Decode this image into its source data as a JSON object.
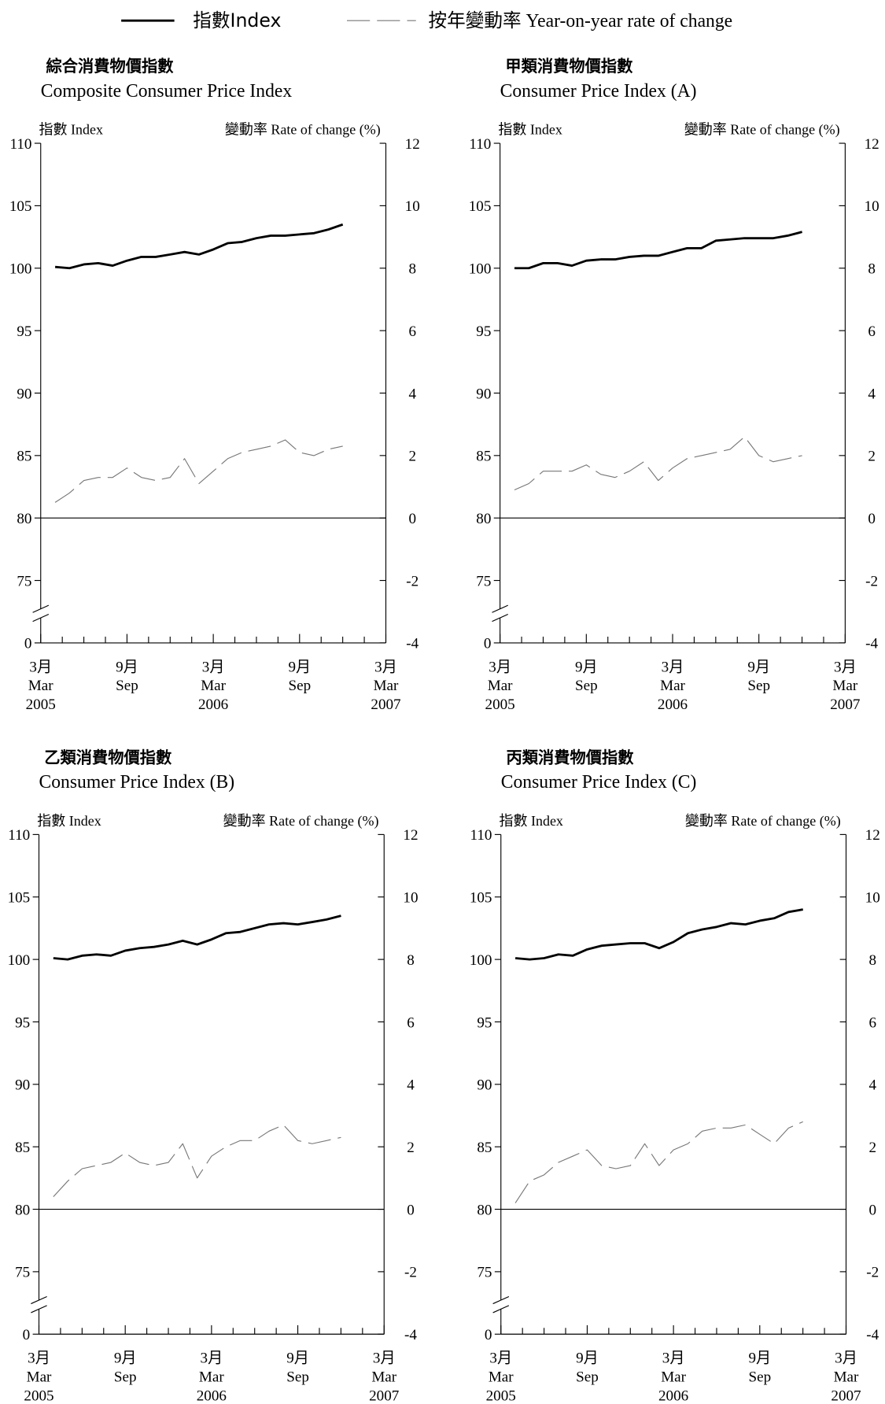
{
  "chart_data": [
    {
      "type": "line",
      "title": "綜合消費物價指數",
      "subtitle": "Composite Consumer Price Index",
      "ylabel": "指數 Index",
      "y2label": "變動率 Rate of change (%)",
      "x": [
        1,
        2,
        3,
        4,
        5,
        6,
        7,
        8,
        9,
        10,
        11,
        12,
        13,
        14,
        15,
        16,
        17,
        18,
        19,
        20,
        21
      ],
      "xlim": [
        0,
        24
      ],
      "xticks": [
        {
          "value": 0,
          "label": [
            "3月",
            "Mar",
            "2005"
          ]
        },
        {
          "value": 6,
          "label": [
            "9月",
            "Sep"
          ]
        },
        {
          "value": 12,
          "label": [
            "3月",
            "Mar",
            "2006"
          ]
        },
        {
          "value": 18,
          "label": [
            "9月",
            "Sep"
          ]
        },
        {
          "value": 24,
          "label": [
            "3月",
            "Mar",
            "2007"
          ]
        }
      ],
      "x_minor_ticks": [
        1.5,
        3,
        4.5,
        7.5,
        9,
        10.5,
        13.5,
        15,
        16.5,
        19.5,
        21,
        22.5
      ],
      "ylim": [
        0,
        110
      ],
      "y_break": [
        0,
        70
      ],
      "yticks": [
        0,
        75,
        80,
        85,
        90,
        95,
        100,
        105,
        110
      ],
      "y2lim": [
        -4,
        12
      ],
      "y2ticks": [
        -4,
        -2,
        0,
        2,
        4,
        6,
        8,
        10,
        12
      ],
      "y2_zero_line": true,
      "series": [
        {
          "name": "指數Index",
          "color": "#000000",
          "width": 2.5,
          "values": [
            100.1,
            100.0,
            100.3,
            100.4,
            100.2,
            100.6,
            100.9,
            100.9,
            101.1,
            101.3,
            101.1,
            101.5,
            102.0,
            102.1,
            102.4,
            102.6,
            102.6,
            102.7,
            102.8,
            103.1,
            103.5
          ]
        },
        {
          "name": "按年變動率 Year-on-year rate of change",
          "color": "#777777",
          "width": 1,
          "dash": "26 8",
          "axis": "y2",
          "values": [
            0.5,
            0.8,
            1.2,
            1.3,
            1.3,
            1.6,
            1.3,
            1.2,
            1.3,
            1.9,
            1.1,
            1.5,
            1.9,
            2.1,
            2.2,
            2.3,
            2.5,
            2.1,
            2.0,
            2.2,
            2.3
          ]
        }
      ]
    },
    {
      "type": "line",
      "title": "甲類消費物價指數",
      "subtitle": "Consumer Price Index (A)",
      "ylabel": "指數 Index",
      "y2label": "變動率 Rate of change (%)",
      "x": [
        1,
        2,
        3,
        4,
        5,
        6,
        7,
        8,
        9,
        10,
        11,
        12,
        13,
        14,
        15,
        16,
        17,
        18,
        19,
        20,
        21
      ],
      "xlim": [
        0,
        24
      ],
      "xticks": [
        {
          "value": 0,
          "label": [
            "3月",
            "Mar",
            "2005"
          ]
        },
        {
          "value": 6,
          "label": [
            "9月",
            "Sep"
          ]
        },
        {
          "value": 12,
          "label": [
            "3月",
            "Mar",
            "2006"
          ]
        },
        {
          "value": 18,
          "label": [
            "9月",
            "Sep"
          ]
        },
        {
          "value": 24,
          "label": [
            "3月",
            "Mar",
            "2007"
          ]
        }
      ],
      "x_minor_ticks": [
        1.5,
        3,
        4.5,
        7.5,
        9,
        10.5,
        13.5,
        15,
        16.5,
        19.5,
        21,
        22.5
      ],
      "ylim": [
        0,
        110
      ],
      "y_break": [
        0,
        70
      ],
      "yticks": [
        0,
        75,
        80,
        85,
        90,
        95,
        100,
        105,
        110
      ],
      "y2lim": [
        -4,
        12
      ],
      "y2ticks": [
        -4,
        -2,
        0,
        2,
        4,
        6,
        8,
        10,
        12
      ],
      "y2_zero_line": true,
      "series": [
        {
          "color": "#000000",
          "width": 2.5,
          "values": [
            100.0,
            100.0,
            100.4,
            100.4,
            100.2,
            100.6,
            100.7,
            100.7,
            100.9,
            101.0,
            101.0,
            101.3,
            101.6,
            101.6,
            102.2,
            102.3,
            102.4,
            102.4,
            102.4,
            102.6,
            102.9
          ]
        },
        {
          "color": "#777777",
          "width": 1,
          "dash": "26 8",
          "axis": "y2",
          "values": [
            0.9,
            1.1,
            1.5,
            1.5,
            1.5,
            1.7,
            1.4,
            1.3,
            1.5,
            1.8,
            1.2,
            1.6,
            1.9,
            2.0,
            2.1,
            2.2,
            2.6,
            2.0,
            1.8,
            1.9,
            2.0
          ]
        }
      ]
    },
    {
      "type": "line",
      "title": "乙類消費物價指數",
      "subtitle": "Consumer Price Index (B)",
      "ylabel": "指數 Index",
      "y2label": "變動率 Rate of change (%)",
      "x": [
        1,
        2,
        3,
        4,
        5,
        6,
        7,
        8,
        9,
        10,
        11,
        12,
        13,
        14,
        15,
        16,
        17,
        18,
        19,
        20,
        21
      ],
      "xlim": [
        0,
        24
      ],
      "xticks": [
        {
          "value": 0,
          "label": [
            "3月",
            "Mar",
            "2005"
          ]
        },
        {
          "value": 6,
          "label": [
            "9月",
            "Sep"
          ]
        },
        {
          "value": 12,
          "label": [
            "3月",
            "Mar",
            "2006"
          ]
        },
        {
          "value": 18,
          "label": [
            "9月",
            "Sep"
          ]
        },
        {
          "value": 24,
          "label": [
            "3月",
            "Mar",
            "2007"
          ]
        }
      ],
      "x_minor_ticks": [
        1.5,
        3,
        4.5,
        7.5,
        9,
        10.5,
        13.5,
        15,
        16.5,
        19.5,
        21,
        22.5
      ],
      "ylim": [
        0,
        110
      ],
      "y_break": [
        0,
        70
      ],
      "yticks": [
        0,
        75,
        80,
        85,
        90,
        95,
        100,
        105,
        110
      ],
      "y2lim": [
        -4,
        12
      ],
      "y2ticks": [
        -4,
        -2,
        0,
        2,
        4,
        6,
        8,
        10,
        12
      ],
      "y2_zero_line": true,
      "series": [
        {
          "color": "#000000",
          "width": 2.5,
          "values": [
            100.1,
            100.0,
            100.3,
            100.4,
            100.3,
            100.7,
            100.9,
            101.0,
            101.2,
            101.5,
            101.2,
            101.6,
            102.1,
            102.2,
            102.5,
            102.8,
            102.9,
            102.8,
            103.0,
            103.2,
            103.5
          ]
        },
        {
          "color": "#777777",
          "width": 1,
          "dash": "26 8",
          "axis": "y2",
          "values": [
            0.4,
            0.9,
            1.3,
            1.4,
            1.5,
            1.8,
            1.5,
            1.4,
            1.5,
            2.1,
            1.0,
            1.7,
            2.0,
            2.2,
            2.2,
            2.5,
            2.7,
            2.2,
            2.1,
            2.2,
            2.3
          ]
        }
      ]
    },
    {
      "type": "line",
      "title": "丙類消費物價指數",
      "subtitle": "Consumer Price Index (C)",
      "ylabel": "指數 Index",
      "y2label": "變動率 Rate of change (%)",
      "x": [
        1,
        2,
        3,
        4,
        5,
        6,
        7,
        8,
        9,
        10,
        11,
        12,
        13,
        14,
        15,
        16,
        17,
        18,
        19,
        20,
        21
      ],
      "xlim": [
        0,
        24
      ],
      "xticks": [
        {
          "value": 0,
          "label": [
            "3月",
            "Mar",
            "2005"
          ]
        },
        {
          "value": 6,
          "label": [
            "9月",
            "Sep"
          ]
        },
        {
          "value": 12,
          "label": [
            "3月",
            "Mar",
            "2006"
          ]
        },
        {
          "value": 18,
          "label": [
            "9月",
            "Sep"
          ]
        },
        {
          "value": 24,
          "label": [
            "3月",
            "Mar",
            "2007"
          ]
        }
      ],
      "x_minor_ticks": [
        1.5,
        3,
        4.5,
        7.5,
        9,
        10.5,
        13.5,
        15,
        16.5,
        19.5,
        21,
        22.5
      ],
      "ylim": [
        0,
        110
      ],
      "y_break": [
        0,
        70
      ],
      "yticks": [
        0,
        75,
        80,
        85,
        90,
        95,
        100,
        105,
        110
      ],
      "y2lim": [
        -4,
        12
      ],
      "y2ticks": [
        -4,
        -2,
        0,
        2,
        4,
        6,
        8,
        10,
        12
      ],
      "y2_zero_line": true,
      "series": [
        {
          "color": "#000000",
          "width": 2.5,
          "values": [
            100.1,
            100.0,
            100.1,
            100.4,
            100.3,
            100.8,
            101.1,
            101.2,
            101.3,
            101.3,
            100.9,
            101.4,
            102.1,
            102.4,
            102.6,
            102.9,
            102.8,
            103.1,
            103.3,
            103.8,
            104.0
          ]
        },
        {
          "color": "#777777",
          "width": 1,
          "dash": "26 8",
          "axis": "y2",
          "values": [
            0.2,
            0.9,
            1.1,
            1.5,
            1.7,
            1.9,
            1.4,
            1.3,
            1.4,
            2.1,
            1.4,
            1.9,
            2.1,
            2.5,
            2.6,
            2.6,
            2.7,
            2.4,
            2.1,
            2.6,
            2.8
          ]
        }
      ]
    }
  ]
}
